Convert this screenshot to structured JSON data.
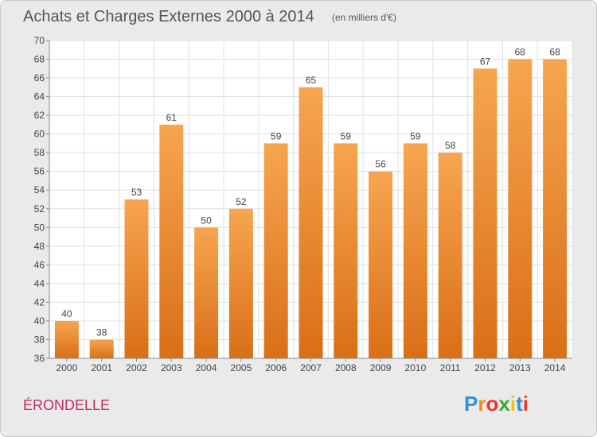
{
  "chart_data": {
    "type": "bar",
    "title": "Achats et Charges Externes 2000 à 2014",
    "subtitle": "(en milliers d'€)",
    "categories": [
      "2000",
      "2001",
      "2002",
      "2003",
      "2004",
      "2005",
      "2006",
      "2007",
      "2008",
      "2009",
      "2010",
      "2011",
      "2012",
      "2013",
      "2014"
    ],
    "values": [
      40,
      38,
      53,
      61,
      50,
      52,
      59,
      65,
      59,
      56,
      59,
      58,
      67,
      68,
      68
    ],
    "ylim": [
      36,
      70
    ],
    "yticks": [
      36,
      38,
      40,
      42,
      44,
      46,
      48,
      50,
      52,
      54,
      56,
      58,
      60,
      62,
      64,
      66,
      68,
      70
    ],
    "grid": true,
    "bar_color_top": "#f7a550",
    "bar_color_bottom": "#d96f17"
  },
  "footer": {
    "commune": "ÉRONDELLE",
    "logo_text": "Proxiti"
  }
}
